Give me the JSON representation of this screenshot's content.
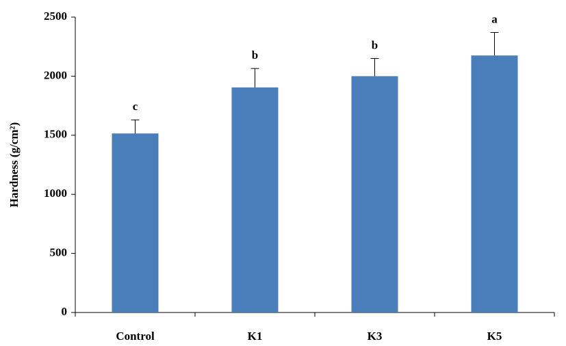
{
  "chart_data": {
    "type": "bar",
    "y_label": "Hardness (g/cm²)",
    "categories": [
      "Control",
      "K1",
      "K3",
      "K5"
    ],
    "values": [
      1515,
      1905,
      2000,
      2175
    ],
    "errors": [
      115,
      160,
      150,
      195
    ],
    "significance_labels": [
      "c",
      "b",
      "b",
      "a"
    ],
    "color": "#4a7ebb",
    "ylim": [
      0,
      2500
    ],
    "yticks": [
      0,
      500,
      1000,
      1500,
      2000,
      2500
    ],
    "grid": false
  }
}
